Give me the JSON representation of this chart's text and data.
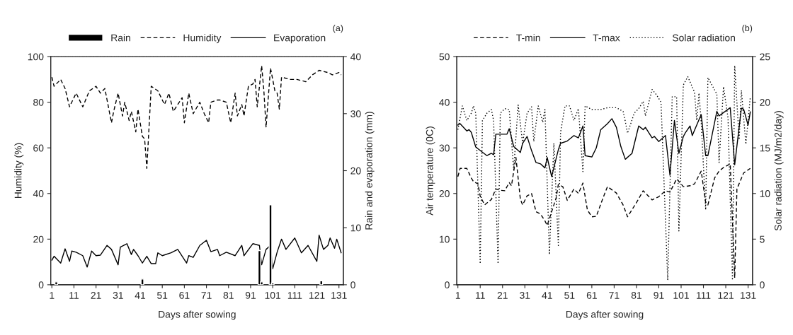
{
  "chart_data": [
    {
      "type": "line",
      "title": "(a)",
      "xlabel": "Days after sowing",
      "ylabel": "Humidity (%)",
      "y2label": "Rain and evaporation (mm)",
      "legend": "top",
      "marker": "none",
      "grid": false,
      "xlim": [
        0.5,
        133
      ],
      "xticks": [
        1,
        11,
        21,
        31,
        41,
        51,
        61,
        71,
        81,
        91,
        101,
        111,
        121,
        131
      ],
      "ylim": [
        0,
        100
      ],
      "yticks": [
        0,
        20,
        40,
        60,
        80,
        100
      ],
      "y2lim": [
        0,
        40
      ],
      "y2ticks": [
        0,
        10,
        20,
        30,
        40
      ],
      "series": [
        {
          "name": "Rain",
          "type": "bar",
          "axis": "y2",
          "color": "#000000",
          "x": [
            3,
            42,
            95,
            96,
            100,
            101,
            123
          ],
          "values": [
            0.5,
            1.0,
            6.0,
            0.5,
            14.0,
            0.3,
            0.7
          ]
        },
        {
          "name": "Humidity",
          "axis": "y",
          "line_style": "dashed",
          "color": "#000000",
          "x": [
            1,
            2,
            5,
            7,
            9,
            12,
            15,
            18,
            21,
            23,
            25,
            28,
            29,
            31,
            33,
            34,
            36,
            37,
            39,
            40,
            42,
            43,
            44,
            46,
            49,
            52,
            54,
            56,
            60,
            61,
            63,
            65,
            68,
            70,
            72,
            73,
            76,
            77,
            80,
            82,
            84,
            85,
            87,
            88,
            90,
            92,
            93,
            94,
            96,
            97,
            98,
            100,
            102,
            103,
            104,
            105,
            109,
            112,
            116,
            119,
            122,
            126,
            128,
            131,
            132
          ],
          "values": [
            91,
            87,
            90,
            86,
            78,
            84,
            78,
            85,
            87,
            84,
            86,
            71,
            76,
            84,
            74,
            80,
            72,
            76,
            67,
            77,
            65,
            64,
            51,
            87,
            85,
            79,
            84,
            76,
            82,
            71,
            84,
            75,
            80,
            75,
            71,
            80,
            81,
            81,
            80,
            71,
            84,
            74,
            79,
            74,
            87,
            88,
            90,
            78,
            96,
            85,
            69,
            95,
            85,
            84,
            77,
            91,
            90,
            90,
            89,
            92,
            94,
            93,
            92,
            93,
            92
          ]
        },
        {
          "name": "Evaporation",
          "axis": "y2",
          "line_style": "solid",
          "color": "#000000",
          "x": [
            1,
            2,
            5,
            7,
            9,
            10,
            12,
            15,
            17,
            19,
            21,
            23,
            26,
            28,
            31,
            32,
            35,
            37,
            38,
            40,
            42,
            44,
            46,
            48,
            49,
            51,
            55,
            58,
            62,
            63,
            65,
            68,
            71,
            73,
            76,
            77,
            80,
            84,
            87,
            88,
            92,
            95,
            96,
            98,
            100,
            101,
            103,
            105,
            107,
            111,
            114,
            117,
            121,
            122,
            124,
            126,
            127,
            129,
            130,
            132
          ],
          "values": [
            4.3,
            5.0,
            3.8,
            6.3,
            4.1,
            5.9,
            5.7,
            5.1,
            3.1,
            5.9,
            5.1,
            5.2,
            6.9,
            6.2,
            3.5,
            6.6,
            7.2,
            5.3,
            6.2,
            5.1,
            3.8,
            5.0,
            3.7,
            3.7,
            5.6,
            5.1,
            5.6,
            6.2,
            3.8,
            5.1,
            4.8,
            6.9,
            7.8,
            5.8,
            6.2,
            5.1,
            5.7,
            5.1,
            6.9,
            5.1,
            7.2,
            6.9,
            3.5,
            6.2,
            6.9,
            2.8,
            5.7,
            8.0,
            6.2,
            8.2,
            5.6,
            6.9,
            4.1,
            8.7,
            6.2,
            6.9,
            8.2,
            6.4,
            8.0,
            5.6
          ]
        }
      ]
    },
    {
      "type": "line",
      "title": "(b)",
      "xlabel": "Days after sowing",
      "ylabel": "Air temperature (0C)",
      "y2label": "Solar radiation (MJ/m2/day)",
      "legend": "top",
      "marker": "none",
      "grid": false,
      "xlim": [
        0.5,
        133
      ],
      "xticks": [
        1,
        11,
        21,
        31,
        41,
        51,
        61,
        71,
        81,
        91,
        101,
        111,
        121,
        131
      ],
      "ylim": [
        0,
        50
      ],
      "yticks": [
        0,
        10,
        20,
        30,
        40,
        50
      ],
      "y2lim": [
        0,
        25
      ],
      "y2ticks": [
        0,
        5,
        10,
        15,
        20,
        25
      ],
      "series": [
        {
          "name": "T-min",
          "axis": "y",
          "line_style": "dashed",
          "color": "#000000",
          "x": [
            1,
            2,
            5,
            7,
            8,
            10,
            11,
            13,
            16,
            18,
            20,
            22,
            24,
            25,
            27,
            29,
            30,
            32,
            34,
            36,
            38,
            40,
            41,
            43,
            45,
            46,
            48,
            50,
            53,
            55,
            57,
            59,
            61,
            63,
            66,
            68,
            72,
            75,
            77,
            81,
            84,
            88,
            91,
            94,
            96,
            99,
            102,
            105,
            107,
            110,
            112,
            113,
            116,
            118,
            120,
            123,
            125,
            126,
            129,
            132
          ],
          "values": [
            23.7,
            25.5,
            25.5,
            23.4,
            22.6,
            22.1,
            19.4,
            17.5,
            18.7,
            21,
            20.7,
            20.6,
            22.4,
            21.7,
            27.9,
            18.7,
            17.5,
            19.5,
            20,
            16,
            15.5,
            14,
            13,
            16,
            19,
            22,
            21.5,
            18.5,
            21,
            20,
            22.3,
            16.4,
            14.9,
            15,
            19,
            21.5,
            20.1,
            17.5,
            14.9,
            18,
            20.6,
            18.6,
            19.3,
            20.6,
            20.3,
            23.2,
            21.5,
            21.7,
            22.1,
            24.9,
            18,
            17.5,
            23.4,
            24.9,
            25.7,
            26.5,
            1.5,
            21,
            24.5,
            25.5
          ]
        },
        {
          "name": "T-max",
          "axis": "y",
          "line_style": "solid",
          "color": "#000000",
          "x": [
            1,
            2,
            5,
            6,
            7,
            9,
            14,
            16,
            17,
            18,
            23,
            24,
            26,
            29,
            30,
            32,
            34,
            36,
            38,
            40,
            41,
            43,
            46,
            47,
            50,
            53,
            55,
            57,
            58,
            61,
            63,
            65,
            68,
            70,
            72,
            74,
            76,
            79,
            82,
            84,
            85,
            88,
            89,
            91,
            94,
            96,
            98,
            100,
            102,
            103,
            105,
            106,
            110,
            112,
            113,
            117,
            118,
            123,
            125,
            128,
            129,
            131,
            132
          ],
          "values": [
            35,
            35.3,
            33.7,
            34,
            33.4,
            30.2,
            28.3,
            28.8,
            28.5,
            33,
            33,
            34.2,
            30.3,
            29,
            31,
            32.5,
            29.4,
            26.8,
            26.5,
            25.6,
            27.9,
            23.7,
            29.6,
            31,
            31.5,
            32.7,
            32.2,
            34.8,
            28.3,
            28,
            30,
            34,
            35.3,
            36.4,
            34.5,
            30.3,
            27.5,
            28.8,
            34.8,
            34,
            34.5,
            32.2,
            32.5,
            31.4,
            32.7,
            24,
            36,
            28.8,
            32.5,
            33.4,
            34.8,
            32.7,
            37.3,
            28.3,
            28.3,
            38,
            37,
            38.8,
            26.3,
            38.7,
            38.5,
            35,
            37.9
          ]
        },
        {
          "name": "Solar radiation",
          "axis": "y2",
          "line_style": "dotted",
          "color": "#000000",
          "x": [
            1,
            3,
            5,
            7,
            8,
            9,
            11,
            12,
            14,
            16,
            17,
            19,
            20,
            22,
            24,
            26,
            28,
            30,
            32,
            34,
            35,
            37,
            39,
            40,
            42,
            44,
            46,
            47,
            49,
            51,
            53,
            55,
            57,
            58,
            61,
            65,
            68,
            72,
            75,
            76,
            77,
            80,
            82,
            84,
            85,
            88,
            90,
            92,
            95,
            97,
            99,
            100,
            102,
            104,
            107,
            108,
            109,
            110,
            112,
            113,
            115,
            117,
            118,
            120,
            122,
            124,
            125,
            127,
            128,
            130,
            132
          ],
          "values": [
            17,
            19.6,
            18,
            18.8,
            19.6,
            18.8,
            2.3,
            18,
            18.8,
            19.2,
            18,
            2.3,
            18.8,
            19.3,
            19.2,
            12.6,
            19.7,
            15.5,
            18.8,
            19.5,
            15.7,
            19.6,
            17.8,
            19.2,
            3.3,
            15.5,
            4.3,
            16.7,
            19.6,
            19.6,
            18,
            19.3,
            12.4,
            19.6,
            19.2,
            19.2,
            19.4,
            19.4,
            19,
            17.9,
            16.6,
            18.8,
            19.3,
            20.1,
            18.5,
            21.4,
            20.8,
            20,
            0.5,
            20.6,
            20.6,
            5.9,
            21.9,
            22.8,
            21.1,
            18,
            21,
            17.8,
            8.2,
            22.7,
            21.8,
            20.9,
            13.4,
            21.7,
            18.3,
            0.5,
            24,
            15.9,
            21.3,
            15.4,
            20.6
          ]
        }
      ]
    }
  ]
}
